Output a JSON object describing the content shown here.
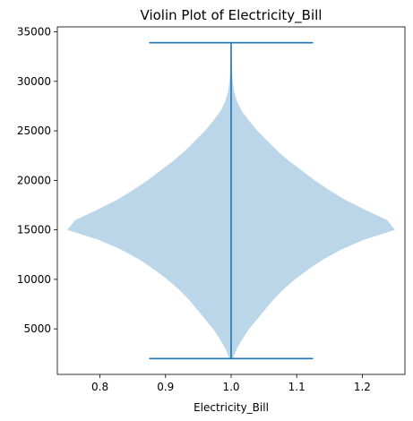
{
  "chart_data": {
    "type": "violin",
    "title": "Violin Plot of Electricity_Bill",
    "xlabel": "Electricity_Bill",
    "ylabel": "",
    "position": 1.0,
    "width": 0.5,
    "min": 2000,
    "max": 33900,
    "xlim": [
      0.735,
      1.265
    ],
    "ylim": [
      400,
      35500
    ],
    "xticks": [
      0.8,
      0.9,
      1.0,
      1.1,
      1.2
    ],
    "xtick_labels": [
      "0.8",
      "0.9",
      "1.0",
      "1.1",
      "1.2"
    ],
    "yticks": [
      5000,
      10000,
      15000,
      20000,
      25000,
      30000,
      35000
    ],
    "ytick_labels": [
      "5000",
      "10000",
      "15000",
      "20000",
      "25000",
      "30000",
      "35000"
    ],
    "grid": false,
    "body_color": "#bcd6e9",
    "line_color": "#1f77b4",
    "density_profile": [
      {
        "y": 2000,
        "w": 0.01
      },
      {
        "y": 3000,
        "w": 0.035
      },
      {
        "y": 4000,
        "w": 0.07
      },
      {
        "y": 5000,
        "w": 0.11
      },
      {
        "y": 6000,
        "w": 0.16
      },
      {
        "y": 7000,
        "w": 0.21
      },
      {
        "y": 8000,
        "w": 0.26
      },
      {
        "y": 9000,
        "w": 0.32
      },
      {
        "y": 10000,
        "w": 0.39
      },
      {
        "y": 11000,
        "w": 0.47
      },
      {
        "y": 12000,
        "w": 0.56
      },
      {
        "y": 13000,
        "w": 0.67
      },
      {
        "y": 14000,
        "w": 0.81
      },
      {
        "y": 15000,
        "w": 1.0
      },
      {
        "y": 16000,
        "w": 0.95
      },
      {
        "y": 17000,
        "w": 0.82
      },
      {
        "y": 18000,
        "w": 0.7
      },
      {
        "y": 19000,
        "w": 0.6
      },
      {
        "y": 20000,
        "w": 0.51
      },
      {
        "y": 21000,
        "w": 0.43
      },
      {
        "y": 22000,
        "w": 0.35
      },
      {
        "y": 23000,
        "w": 0.28
      },
      {
        "y": 24000,
        "w": 0.22
      },
      {
        "y": 25000,
        "w": 0.16
      },
      {
        "y": 26000,
        "w": 0.11
      },
      {
        "y": 27000,
        "w": 0.065
      },
      {
        "y": 28000,
        "w": 0.035
      },
      {
        "y": 29000,
        "w": 0.018
      },
      {
        "y": 30000,
        "w": 0.01
      },
      {
        "y": 31000,
        "w": 0.006
      },
      {
        "y": 32000,
        "w": 0.004
      },
      {
        "y": 33000,
        "w": 0.003
      },
      {
        "y": 33900,
        "w": 0.002
      }
    ]
  }
}
